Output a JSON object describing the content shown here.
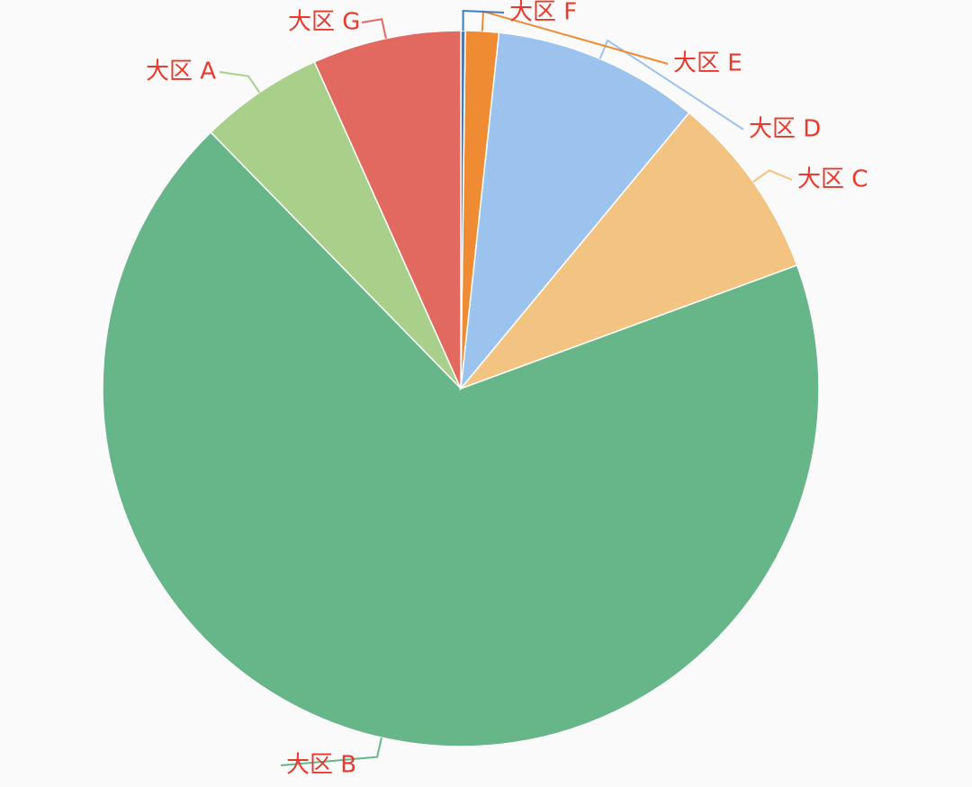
{
  "chart_data": {
    "type": "pie",
    "categories": [
      "大区 A",
      "大区 B",
      "大区 C",
      "大区 D",
      "大区 E",
      "大区 F",
      "大区 G"
    ],
    "values": [
      5.6,
      68.3,
      8.4,
      9.3,
      1.5,
      0.2,
      6.7
    ],
    "colors": [
      "#a9d08b",
      "#67b68a",
      "#f3c381",
      "#9bc3ee",
      "#ef8b33",
      "#3b7ec2",
      "#e1695f"
    ]
  }
}
